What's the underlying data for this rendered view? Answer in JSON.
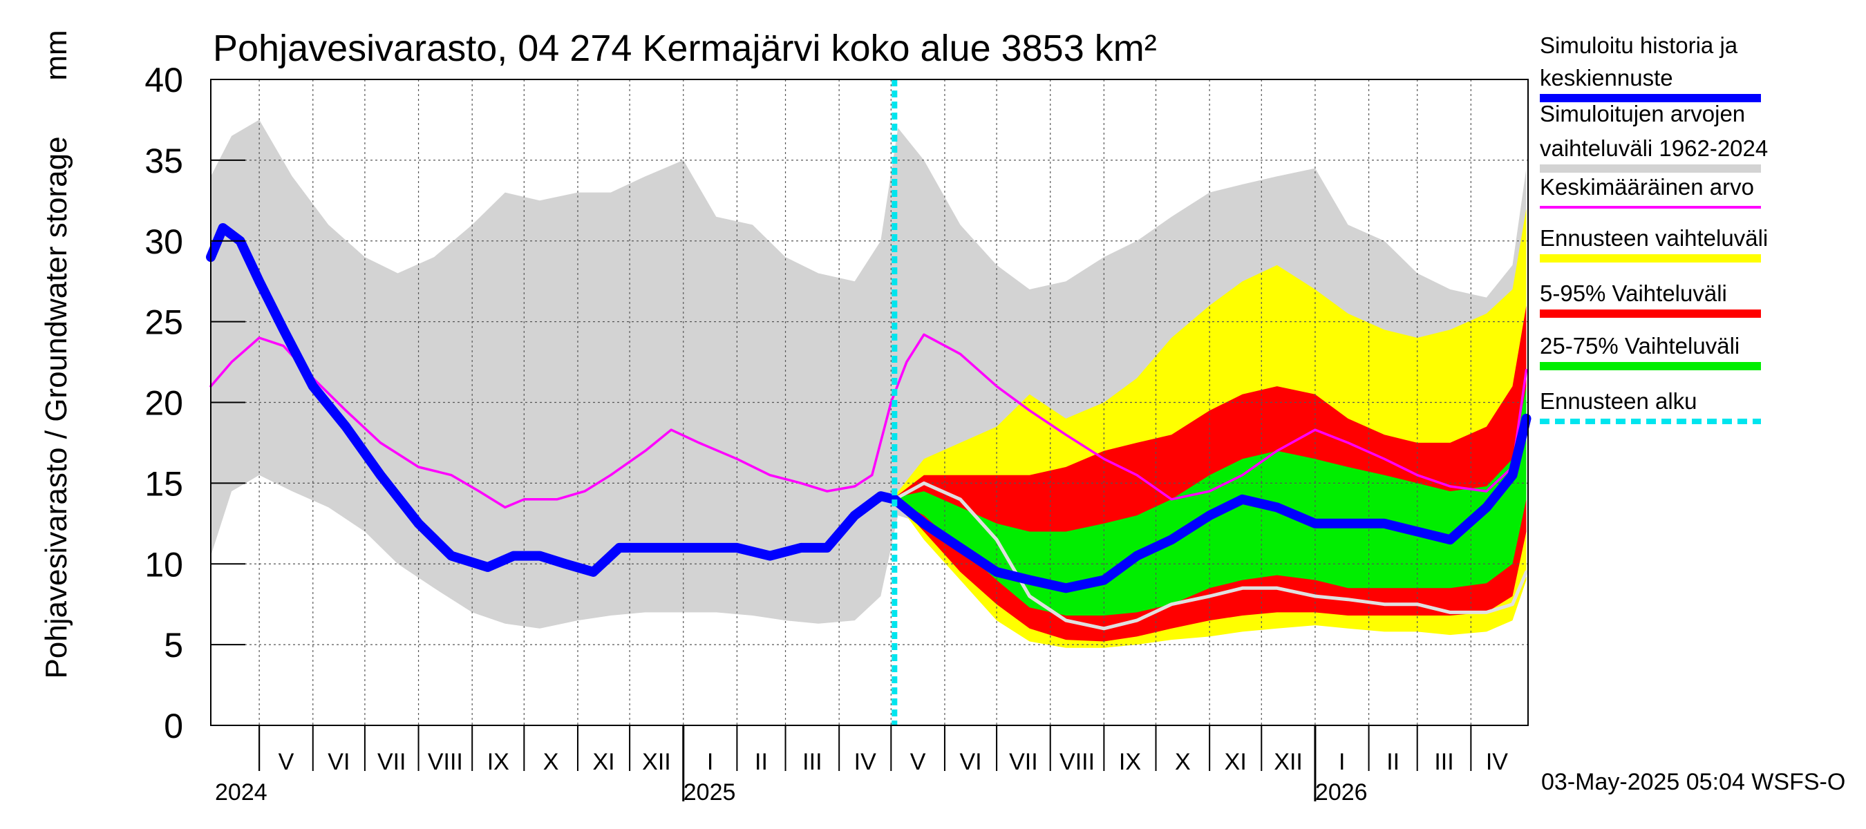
{
  "chart_data": {
    "type": "area",
    "title": "Pohjavesivarasto, 04 274 Kermajärvi koko alue 3853 km²",
    "ylabel": "Pohjavesivarasto / Groundwater storage",
    "yunit": "mm",
    "ylim": [
      0,
      40
    ],
    "yticks": [
      "0",
      "5",
      "10",
      "15",
      "20",
      "25",
      "30",
      "35",
      "40"
    ],
    "xlim": [
      "2024-04-03",
      "2026-05-04"
    ],
    "month_labels": [
      {
        "label": "V",
        "start": "2024-05-01",
        "end": "2024-06-01"
      },
      {
        "label": "VI",
        "start": "2024-06-01",
        "end": "2024-07-01"
      },
      {
        "label": "VII",
        "start": "2024-07-01",
        "end": "2024-08-01"
      },
      {
        "label": "VIII",
        "start": "2024-08-01",
        "end": "2024-09-01"
      },
      {
        "label": "IX",
        "start": "2024-09-01",
        "end": "2024-10-01"
      },
      {
        "label": "X",
        "start": "2024-10-01",
        "end": "2024-11-01"
      },
      {
        "label": "XI",
        "start": "2024-11-01",
        "end": "2024-12-01"
      },
      {
        "label": "XII",
        "start": "2024-12-01",
        "end": "2025-01-01"
      },
      {
        "label": "I",
        "start": "2025-01-01",
        "end": "2025-02-01"
      },
      {
        "label": "II",
        "start": "2025-02-01",
        "end": "2025-03-01"
      },
      {
        "label": "III",
        "start": "2025-03-01",
        "end": "2025-04-01"
      },
      {
        "label": "IV",
        "start": "2025-04-01",
        "end": "2025-05-01"
      },
      {
        "label": "V",
        "start": "2025-05-01",
        "end": "2025-06-01"
      },
      {
        "label": "VI",
        "start": "2025-06-01",
        "end": "2025-07-01"
      },
      {
        "label": "VII",
        "start": "2025-07-01",
        "end": "2025-08-01"
      },
      {
        "label": "VIII",
        "start": "2025-08-01",
        "end": "2025-09-01"
      },
      {
        "label": "IX",
        "start": "2025-09-01",
        "end": "2025-10-01"
      },
      {
        "label": "X",
        "start": "2025-10-01",
        "end": "2025-11-01"
      },
      {
        "label": "XI",
        "start": "2025-11-01",
        "end": "2025-12-01"
      },
      {
        "label": "XII",
        "start": "2025-12-01",
        "end": "2026-01-01"
      },
      {
        "label": "I",
        "start": "2026-01-01",
        "end": "2026-02-01"
      },
      {
        "label": "II",
        "start": "2026-02-01",
        "end": "2026-03-01"
      },
      {
        "label": "III",
        "start": "2026-03-01",
        "end": "2026-04-01"
      },
      {
        "label": "IV",
        "start": "2026-04-01",
        "end": "2026-05-01"
      }
    ],
    "year_labels": [
      {
        "label": "2024",
        "date": "2024-04-03"
      },
      {
        "label": "2025",
        "date": "2025-01-01"
      },
      {
        "label": "2026",
        "date": "2026-01-01"
      }
    ],
    "forecast_start": "2025-05-03",
    "bands": [
      {
        "name": "Simuloitujen arvojen vaihteluväli 1962-2024",
        "color": "#d3d3d3",
        "x": [
          "2024-04-03",
          "2024-04-15",
          "2024-05-01",
          "2024-05-20",
          "2024-06-10",
          "2024-07-01",
          "2024-07-20",
          "2024-08-10",
          "2024-09-01",
          "2024-09-20",
          "2024-10-10",
          "2024-11-01",
          "2024-11-20",
          "2024-12-10",
          "2025-01-01",
          "2025-01-20",
          "2025-02-10",
          "2025-03-01",
          "2025-03-20",
          "2025-04-10",
          "2025-04-25",
          "2025-05-05",
          "2025-05-20",
          "2025-06-10",
          "2025-07-01",
          "2025-07-20",
          "2025-08-10",
          "2025-09-01",
          "2025-09-20",
          "2025-10-10",
          "2025-11-01",
          "2025-11-20",
          "2025-12-10",
          "2026-01-01",
          "2026-01-20",
          "2026-02-10",
          "2026-03-01",
          "2026-03-20",
          "2026-04-10",
          "2026-04-25",
          "2026-05-03"
        ],
        "low": [
          10.5,
          14.5,
          15.5,
          14.5,
          13.5,
          12.0,
          10.0,
          8.5,
          7.0,
          6.3,
          6.0,
          6.5,
          6.8,
          7.0,
          7.0,
          7.0,
          6.8,
          6.5,
          6.3,
          6.5,
          8.0,
          13.0,
          12.5,
          10.0,
          7.5,
          6.0,
          5.5,
          5.5,
          5.8,
          6.0,
          6.5,
          6.5,
          6.8,
          7.0,
          7.0,
          6.8,
          6.5,
          6.5,
          6.5,
          7.5,
          11.0
        ],
        "high": [
          34.0,
          36.5,
          37.5,
          34.0,
          31.0,
          29.0,
          28.0,
          29.0,
          31.0,
          33.0,
          32.5,
          33.0,
          33.0,
          34.0,
          35.0,
          31.5,
          31.0,
          29.0,
          28.0,
          27.5,
          30.0,
          37.0,
          35.0,
          31.0,
          28.5,
          27.0,
          27.5,
          29.0,
          30.0,
          31.5,
          33.0,
          33.5,
          34.0,
          34.5,
          31.0,
          30.0,
          28.0,
          27.0,
          26.5,
          28.5,
          34.5
        ]
      },
      {
        "name": "Ennusteen vaihteluväli",
        "color": "#ffff00",
        "x": [
          "2025-05-03",
          "2025-05-20",
          "2025-06-10",
          "2025-07-01",
          "2025-07-20",
          "2025-08-10",
          "2025-09-01",
          "2025-09-20",
          "2025-10-10",
          "2025-11-01",
          "2025-11-20",
          "2025-12-10",
          "2026-01-01",
          "2026-01-20",
          "2026-02-10",
          "2026-03-01",
          "2026-03-20",
          "2026-04-10",
          "2026-04-25",
          "2026-05-03"
        ],
        "low": [
          14.0,
          11.5,
          9.0,
          6.5,
          5.2,
          4.8,
          4.8,
          5.0,
          5.3,
          5.5,
          5.8,
          6.0,
          6.2,
          6.0,
          5.8,
          5.8,
          5.6,
          5.8,
          6.5,
          9.0
        ],
        "high": [
          14.2,
          16.5,
          17.5,
          18.5,
          20.5,
          19.0,
          20.0,
          21.5,
          24.0,
          26.0,
          27.5,
          28.5,
          27.0,
          25.5,
          24.5,
          24.0,
          24.5,
          25.5,
          27.0,
          32.0
        ]
      },
      {
        "name": "5-95% Vaihteluväli",
        "color": "#ff0000",
        "x": [
          "2025-05-03",
          "2025-05-20",
          "2025-06-10",
          "2025-07-01",
          "2025-07-20",
          "2025-08-10",
          "2025-09-01",
          "2025-09-20",
          "2025-10-10",
          "2025-11-01",
          "2025-11-20",
          "2025-12-10",
          "2026-01-01",
          "2026-01-20",
          "2026-02-10",
          "2026-03-01",
          "2026-03-20",
          "2026-04-10",
          "2026-04-25",
          "2026-05-03"
        ],
        "low": [
          14.0,
          12.0,
          9.5,
          7.5,
          6.0,
          5.3,
          5.2,
          5.5,
          6.0,
          6.5,
          6.8,
          7.0,
          7.0,
          6.8,
          6.8,
          6.8,
          6.8,
          7.0,
          8.0,
          12.0
        ],
        "high": [
          14.1,
          15.5,
          15.5,
          15.5,
          15.5,
          16.0,
          17.0,
          17.5,
          18.0,
          19.5,
          20.5,
          21.0,
          20.5,
          19.0,
          18.0,
          17.5,
          17.5,
          18.5,
          21.0,
          26.0
        ]
      },
      {
        "name": "25-75% Vaihteluväli",
        "color": "#00ee00",
        "x": [
          "2025-05-03",
          "2025-05-20",
          "2025-06-10",
          "2025-07-01",
          "2025-07-20",
          "2025-08-10",
          "2025-09-01",
          "2025-09-20",
          "2025-10-10",
          "2025-11-01",
          "2025-11-20",
          "2025-12-10",
          "2026-01-01",
          "2026-01-20",
          "2026-02-10",
          "2026-03-01",
          "2026-03-20",
          "2026-04-10",
          "2026-04-25",
          "2026-05-03"
        ],
        "low": [
          14.0,
          13.0,
          11.0,
          9.0,
          7.3,
          6.8,
          6.8,
          7.0,
          7.5,
          8.5,
          9.0,
          9.3,
          9.0,
          8.5,
          8.5,
          8.5,
          8.5,
          8.8,
          10.0,
          14.0
        ],
        "high": [
          14.1,
          14.5,
          13.5,
          12.5,
          12.0,
          12.0,
          12.5,
          13.0,
          14.0,
          15.5,
          16.5,
          17.0,
          16.5,
          16.0,
          15.5,
          15.0,
          14.5,
          14.8,
          16.5,
          21.0
        ]
      }
    ],
    "series": [
      {
        "name": "Keskimääräinen arvo",
        "color": "#ff00ff",
        "x": [
          "2024-04-03",
          "2024-04-15",
          "2024-05-01",
          "2024-05-15",
          "2024-06-01",
          "2024-06-20",
          "2024-07-10",
          "2024-08-01",
          "2024-08-20",
          "2024-09-05",
          "2024-09-20",
          "2024-10-01",
          "2024-10-20",
          "2024-11-05",
          "2024-11-20",
          "2024-12-10",
          "2024-12-25",
          "2025-01-10",
          "2025-02-01",
          "2025-02-20",
          "2025-03-10",
          "2025-03-25",
          "2025-04-10",
          "2025-04-20",
          "2025-05-01",
          "2025-05-10",
          "2025-05-20",
          "2025-06-10",
          "2025-07-01",
          "2025-07-20",
          "2025-08-10",
          "2025-09-01",
          "2025-09-20",
          "2025-10-10",
          "2025-11-01",
          "2025-11-20",
          "2025-12-10",
          "2026-01-01",
          "2026-01-20",
          "2026-02-10",
          "2026-03-01",
          "2026-03-20",
          "2026-04-10",
          "2026-04-25",
          "2026-05-03"
        ],
        "values": [
          21.0,
          22.5,
          24.0,
          23.5,
          21.5,
          19.5,
          17.5,
          16.0,
          15.5,
          14.5,
          13.5,
          14.0,
          14.0,
          14.5,
          15.5,
          17.0,
          18.3,
          17.5,
          16.5,
          15.5,
          15.0,
          14.5,
          14.8,
          15.5,
          20.0,
          22.5,
          24.2,
          23.0,
          21.0,
          19.5,
          18.0,
          16.5,
          15.5,
          14.0,
          14.5,
          15.5,
          17.0,
          18.3,
          17.5,
          16.5,
          15.5,
          14.8,
          14.5,
          16.0,
          22.0
        ]
      },
      {
        "name": "Simuloitu historia ja keskiennuste",
        "color": "#0000ff",
        "x": [
          "2024-04-03",
          "2024-04-10",
          "2024-04-20",
          "2024-05-01",
          "2024-05-15",
          "2024-06-01",
          "2024-06-20",
          "2024-07-10",
          "2024-08-01",
          "2024-08-20",
          "2024-09-10",
          "2024-09-25",
          "2024-10-10",
          "2024-10-25",
          "2024-11-10",
          "2024-11-25",
          "2024-12-10",
          "2024-12-25",
          "2025-01-10",
          "2025-02-01",
          "2025-02-20",
          "2025-03-10",
          "2025-03-25",
          "2025-04-10",
          "2025-04-25",
          "2025-05-03",
          "2025-05-20",
          "2025-06-10",
          "2025-07-01",
          "2025-07-20",
          "2025-08-10",
          "2025-09-01",
          "2025-09-20",
          "2025-10-10",
          "2025-11-01",
          "2025-11-20",
          "2025-12-10",
          "2026-01-01",
          "2026-01-20",
          "2026-02-10",
          "2026-03-01",
          "2026-03-20",
          "2026-04-10",
          "2026-04-25",
          "2026-05-03"
        ],
        "values": [
          29.0,
          30.8,
          30.0,
          27.5,
          24.5,
          21.0,
          18.5,
          15.5,
          12.5,
          10.5,
          9.8,
          10.5,
          10.5,
          10.0,
          9.5,
          11.0,
          11.0,
          11.0,
          11.0,
          11.0,
          10.5,
          11.0,
          11.0,
          13.0,
          14.2,
          14.0,
          12.5,
          11.0,
          9.5,
          9.0,
          8.5,
          9.0,
          10.5,
          11.5,
          13.0,
          14.0,
          13.5,
          12.5,
          12.5,
          12.5,
          12.0,
          11.5,
          13.5,
          15.5,
          19.0
        ]
      },
      {
        "name": "",
        "color": "#e0e0e0",
        "x": [
          "2025-05-03",
          "2025-05-20",
          "2025-06-10",
          "2025-07-01",
          "2025-07-20",
          "2025-08-10",
          "2025-09-01",
          "2025-09-20",
          "2025-10-10",
          "2025-11-01",
          "2025-11-20",
          "2025-12-10",
          "2026-01-01",
          "2026-01-20",
          "2026-02-10",
          "2026-03-01",
          "2026-03-20",
          "2026-04-10",
          "2026-04-25",
          "2026-05-03"
        ],
        "values": [
          14.0,
          15.0,
          14.0,
          11.5,
          8.0,
          6.5,
          6.0,
          6.5,
          7.5,
          8.0,
          8.5,
          8.5,
          8.0,
          7.8,
          7.5,
          7.5,
          7.0,
          7.0,
          7.5,
          9.5
        ]
      }
    ],
    "legend": [
      {
        "label": "Simuloitu historia ja keskiennuste",
        "color": "#0000ff",
        "style": "thick"
      },
      {
        "label": "Simuloitujen arvojen vaihteluväli 1962-2024",
        "color": "#d3d3d3",
        "style": "thick"
      },
      {
        "label": "Keskimääräinen arvo",
        "color": "#ff00ff",
        "style": "thin"
      },
      {
        "label": "Ennusteen vaihteluväli",
        "color": "#ffff00",
        "style": "thick"
      },
      {
        "label": "5-95% Vaihteluväli",
        "color": "#ff0000",
        "style": "thick"
      },
      {
        "label": "25-75% Vaihteluväli",
        "color": "#00ee00",
        "style": "thick"
      },
      {
        "label": "Ennusteen alku",
        "color": "#00e5ee",
        "style": "dashed"
      }
    ],
    "legend_placement": "right",
    "grid": true,
    "timestamp": "03-May-2025 05:04 WSFS-O"
  }
}
